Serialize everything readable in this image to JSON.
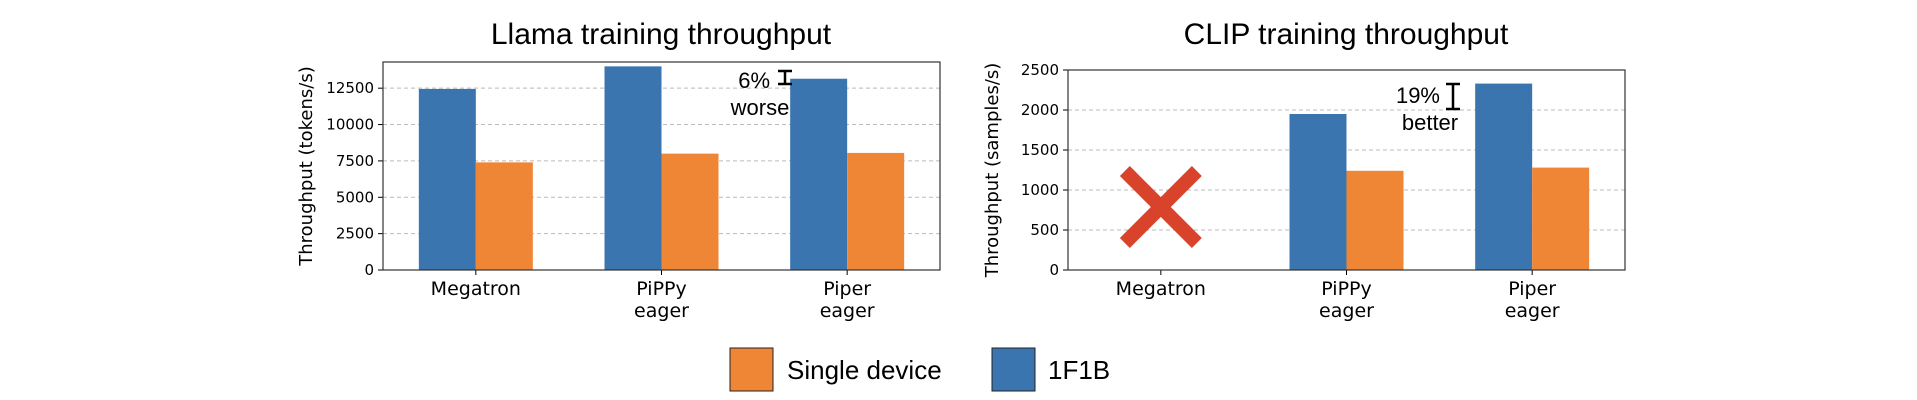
{
  "colors": {
    "single_device": "#ef8636",
    "one_f1b": "#3b75af",
    "cross": "#d9432b",
    "grid": "#bbbbbb"
  },
  "legend": {
    "placement": "bottom-center",
    "items": [
      {
        "label": "Single device",
        "color": "#ef8636"
      },
      {
        "label": "1F1B",
        "color": "#3b75af"
      }
    ]
  },
  "chart_data": [
    {
      "type": "bar",
      "title": "Llama training throughput",
      "ylabel": "Throughput (tokens/s)",
      "ylim": [
        0,
        14300
      ],
      "yticks": [
        "0",
        "2500",
        "5000",
        "7500",
        "10000",
        "12500"
      ],
      "categories": [
        [
          "Megatron"
        ],
        [
          "PiPPy",
          "eager"
        ],
        [
          "Piper",
          "eager"
        ]
      ],
      "grid": true,
      "series": [
        {
          "name": "1F1B",
          "color": "#3b75af",
          "values": [
            12450,
            14000,
            13150
          ]
        },
        {
          "name": "Single device",
          "color": "#ef8636",
          "values": [
            7400,
            8000,
            8050
          ]
        }
      ],
      "annotation": {
        "lines": [
          "6%",
          "worse"
        ]
      },
      "missing": []
    },
    {
      "type": "bar",
      "title": "CLIP training throughput",
      "ylabel": "Throughput (samples/s)",
      "ylim": [
        0,
        2500
      ],
      "yticks": [
        "0",
        "500",
        "1000",
        "1500",
        "2000",
        "2500"
      ],
      "categories": [
        [
          "Megatron"
        ],
        [
          "PiPPy",
          "eager"
        ],
        [
          "Piper",
          "eager"
        ]
      ],
      "grid": true,
      "series": [
        {
          "name": "1F1B",
          "color": "#3b75af",
          "values": [
            null,
            1950,
            2330
          ]
        },
        {
          "name": "Single device",
          "color": "#ef8636",
          "values": [
            null,
            1240,
            1280
          ]
        }
      ],
      "annotation": {
        "lines": [
          "19%",
          "better"
        ]
      },
      "missing": [
        0
      ]
    }
  ]
}
